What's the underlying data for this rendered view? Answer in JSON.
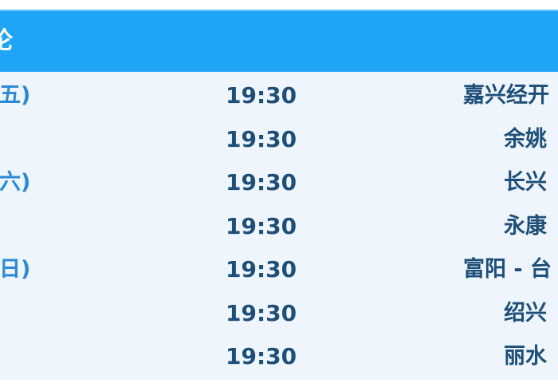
{
  "header": {
    "title": "论"
  },
  "rows": [
    {
      "date": "周五)",
      "time": "19:30",
      "venue": "嘉兴经开"
    },
    {
      "date": "",
      "time": "19:30",
      "venue": "余姚"
    },
    {
      "date": "周六)",
      "time": "19:30",
      "venue": "长兴"
    },
    {
      "date": "",
      "time": "19:30",
      "venue": "永康"
    },
    {
      "date": "周日)",
      "time": "19:30",
      "venue": "富阳 - 台"
    },
    {
      "date": "",
      "time": "19:30",
      "venue": "绍兴"
    },
    {
      "date": "",
      "time": "19:30",
      "venue": "丽水"
    }
  ],
  "colors": {
    "header": "#1fa5f5",
    "date": "#2a8ad6",
    "text": "#1d4f78",
    "row_bg": "#eef5fc"
  }
}
